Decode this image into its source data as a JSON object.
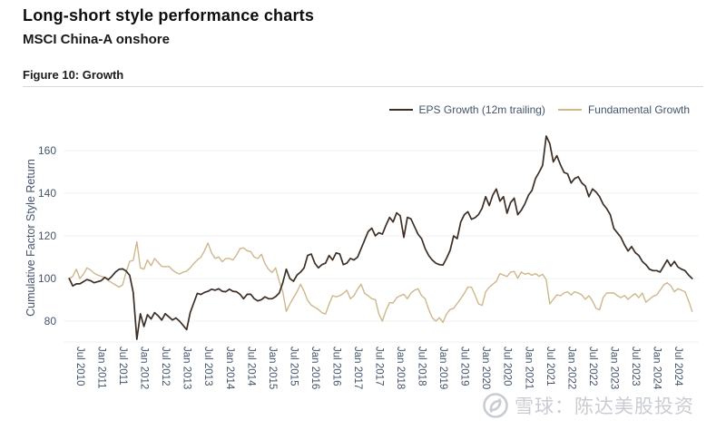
{
  "header": {
    "title": "Long-short style performance charts",
    "subtitle": "MSCI China-A onshore",
    "figure_label": "Figure 10: Growth"
  },
  "colors": {
    "eps_line": "#3C2E25",
    "fundamental_line": "#CDB78C",
    "axis_text": "#44546A",
    "gridline": "#F0F0F0",
    "divider": "#D9D9D9",
    "watermark": "#C9CCD2"
  },
  "watermark": {
    "text": "雪球：陈达美股投资",
    "logo": "xueqiu-snowball-logo"
  },
  "chart_data": {
    "type": "line",
    "title": "Figure 10: Growth",
    "ylabel": "Cumulative Factor Style Return",
    "ylim": [
      70,
      171
    ],
    "yticks": [
      80,
      100,
      120,
      140,
      160
    ],
    "grid": "horizontal",
    "legend_position": "top-right",
    "x_unit": "month",
    "x_start": "2010-04",
    "x_end": "2024-11",
    "x_tick_labels": [
      "Jul 2010",
      "Jan 2011",
      "Jul 2011",
      "Jan 2012",
      "Jul 2012",
      "Jan 2013",
      "Jul 2013",
      "Jan 2014",
      "Jul 2014",
      "Jan 2015",
      "Jul 2015",
      "Jan 2016",
      "Jul 2016",
      "Jan 2017",
      "Jul 2017",
      "Jan 2018",
      "Jul 2018",
      "Jan 2019",
      "Jul 2019",
      "Jan 2020",
      "Jul 2020",
      "Jan 2021",
      "Jul 2021",
      "Jan 2022",
      "Jul 2022",
      "Jan 2023",
      "Jul 2023",
      "Jan 2024",
      "Jul 2024"
    ],
    "series": [
      {
        "name": "EPS Growth (12m trailing)",
        "color": "#3C2E25",
        "values": [
          100,
          96.5,
          97.5,
          97.5,
          98.5,
          99.5,
          99,
          98,
          98.5,
          99,
          100.5,
          99.5,
          101,
          103,
          104.3,
          104.5,
          103.5,
          101.5,
          93.5,
          71.5,
          83.5,
          77.5,
          83,
          81,
          84,
          82.5,
          80.5,
          83.5,
          82,
          80.5,
          81.5,
          80,
          78,
          76,
          84,
          88.5,
          93,
          92.5,
          93.5,
          94,
          95,
          94.5,
          95.2,
          94,
          93.8,
          95,
          94,
          93.8,
          92.6,
          90.5,
          92.6,
          92.6,
          90.5,
          89.5,
          90.1,
          91.4,
          90.5,
          90.5,
          91.5,
          93.2,
          98,
          104.4,
          100,
          98.7,
          101.6,
          103,
          105,
          110.8,
          111.5,
          107.2,
          105,
          106.5,
          107.2,
          110.8,
          108.7,
          112,
          111.5,
          106.5,
          107.2,
          109.4,
          108.7,
          110,
          114,
          118,
          122,
          123.6,
          120,
          121.5,
          120.8,
          125,
          128.7,
          126.5,
          130.8,
          129.4,
          119.3,
          128.7,
          128,
          124.4,
          120.8,
          118.7,
          114,
          110.8,
          108.7,
          107.2,
          106.5,
          106.3,
          109.4,
          113.2,
          120,
          118.7,
          126.5,
          129.9,
          131.3,
          127.8,
          128.5,
          130,
          133,
          138.4,
          134.2,
          139.1,
          142,
          136.3,
          138.4,
          130.6,
          135.6,
          137.7,
          129.9,
          132,
          135,
          139,
          141.3,
          146.9,
          149.8,
          153,
          166.8,
          163.3,
          154.7,
          157.6,
          153.3,
          149.8,
          149.1,
          144.8,
          146.9,
          147.7,
          144.8,
          143.4,
          138.4,
          142,
          140.6,
          138.4,
          134.9,
          132.8,
          129.9,
          123.5,
          121.4,
          119.3,
          115.7,
          112.9,
          115,
          112.2,
          110.8,
          108,
          106.5,
          104.4,
          103.7,
          103.7,
          103,
          105.8,
          108.7,
          105.8,
          108,
          105.4,
          104.4,
          103.7,
          101.6,
          100
        ]
      },
      {
        "name": "Fundamental Growth",
        "color": "#CDB78C",
        "values": [
          100,
          101,
          104.4,
          100,
          102,
          105,
          104,
          102.5,
          101.6,
          101,
          100.5,
          99,
          98,
          97,
          95.9,
          97,
          103,
          108,
          108.5,
          117.2,
          105,
          104.4,
          108.7,
          106,
          109.4,
          107.5,
          105.7,
          105.5,
          105.7,
          104,
          102.8,
          102.1,
          103,
          103.5,
          105,
          107,
          108.7,
          110,
          113,
          116.7,
          112,
          109.4,
          110.1,
          107.9,
          109.4,
          109.4,
          108.7,
          111,
          114,
          114.4,
          113,
          112.6,
          110,
          109.4,
          111.4,
          107,
          104.4,
          102.8,
          105,
          98.7,
          93.8,
          84.6,
          88,
          91,
          93.8,
          97.3,
          94,
          89.7,
          87.5,
          86.5,
          85.5,
          84,
          83.3,
          88,
          91.9,
          91.4,
          91.9,
          93,
          94.5,
          90.5,
          91.9,
          95,
          97.3,
          93,
          91.9,
          90.5,
          90.1,
          83.3,
          80,
          85,
          88.7,
          88.5,
          91,
          91.9,
          92.6,
          90.5,
          93.2,
          94.5,
          95.2,
          91.9,
          90.5,
          85.5,
          81.6,
          80,
          81.6,
          79.4,
          83.3,
          85.5,
          86,
          88.3,
          90.5,
          93,
          96,
          95.9,
          92.3,
          88.1,
          87.4,
          93.8,
          95.9,
          97.3,
          98.7,
          102.3,
          101.6,
          100.9,
          103,
          103.3,
          100.1,
          103,
          102,
          102.5,
          101.5,
          102.3,
          101,
          102,
          99.4,
          88.1,
          90.2,
          92.3,
          91.9,
          93.2,
          93.8,
          92.3,
          93.8,
          93.2,
          92.3,
          90.2,
          91.9,
          89.5,
          86,
          85.3,
          91,
          93.2,
          93.2,
          93.2,
          92,
          91,
          92,
          90.2,
          91.7,
          92.9,
          91,
          93.2,
          88.9,
          90.2,
          91.6,
          92.3,
          94.5,
          97,
          98,
          96.6,
          93.8,
          95.2,
          94.5,
          93.8,
          89.5,
          84.6
        ]
      }
    ]
  }
}
